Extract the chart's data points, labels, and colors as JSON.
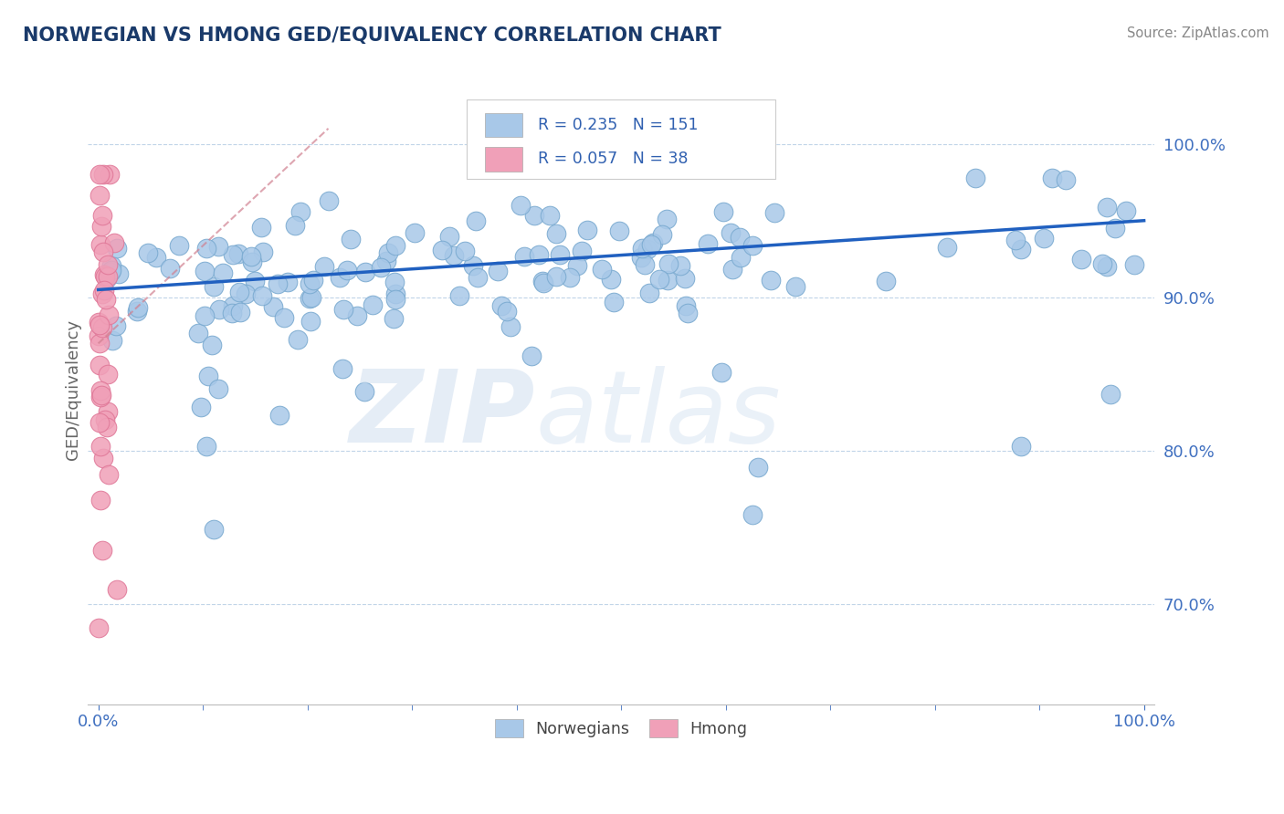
{
  "title": "NORWEGIAN VS HMONG GED/EQUIVALENCY CORRELATION CHART",
  "source": "Source: ZipAtlas.com",
  "ylabel": "GED/Equivalency",
  "ytick_labels": [
    "70.0%",
    "80.0%",
    "90.0%",
    "100.0%"
  ],
  "ytick_values": [
    0.7,
    0.8,
    0.9,
    1.0
  ],
  "xlim": [
    -0.01,
    1.01
  ],
  "ylim": [
    0.635,
    1.045
  ],
  "legend_bottom_blue": "Norwegians",
  "legend_bottom_pink": "Hmong",
  "blue_color": "#a8c8e8",
  "pink_color": "#f0a0b8",
  "blue_edge_color": "#7aaad0",
  "pink_edge_color": "#e07898",
  "blue_line_color": "#2060c0",
  "pink_line_color": "#d08090",
  "title_color": "#1a3a6a",
  "axis_label_color": "#3060b0",
  "tick_color": "#4070c0",
  "grid_color": "#c0d4e8",
  "blue_R": 0.235,
  "blue_N": 151,
  "pink_R": 0.057,
  "pink_N": 38,
  "blue_trend_x0": 0.0,
  "blue_trend_x1": 1.0,
  "blue_trend_y0": 0.905,
  "blue_trend_y1": 0.95,
  "pink_trend_x0": 0.0,
  "pink_trend_x1": 0.22,
  "pink_trend_y0": 0.87,
  "pink_trend_y1": 1.01
}
